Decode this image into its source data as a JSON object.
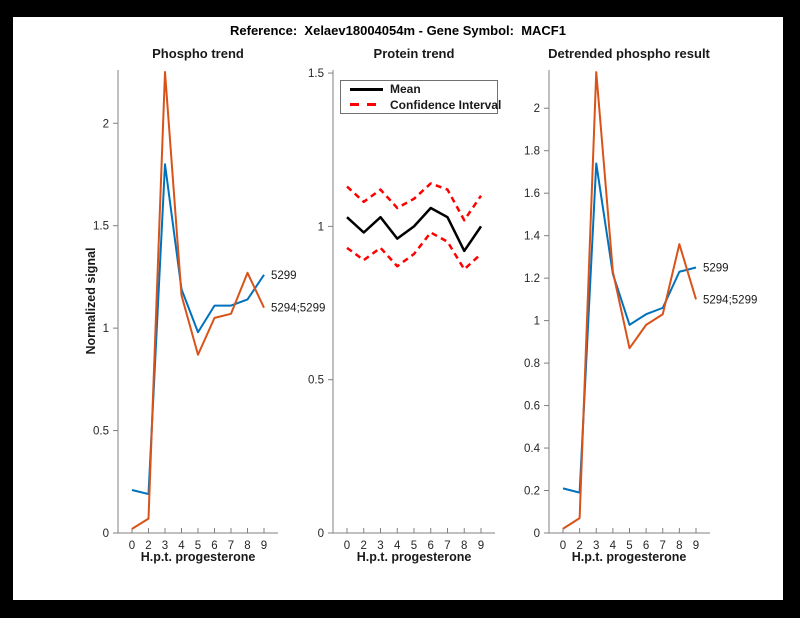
{
  "figure": {
    "title": "Reference:  Xelaev18004054m - Gene Symbol:  MACF1",
    "background_color": "#000000",
    "canvas_color": "#ffffff"
  },
  "palette": {
    "blue": "#0072BD",
    "orange": "#D95319",
    "red": "#FF0000",
    "black": "#000000",
    "axis_line": "#808080",
    "tick_text": "#262626"
  },
  "legend": {
    "entries": [
      "Mean",
      "Confidence Interval"
    ]
  },
  "chart_data": [
    {
      "type": "line",
      "title": "Phospho trend",
      "xlabel": "H.p.t. progesterone",
      "ylabel": "Normalized signal",
      "categories": [
        "0",
        "2",
        "3",
        "4",
        "5",
        "6",
        "7",
        "8",
        "9"
      ],
      "ylim": [
        0,
        2.26
      ],
      "ytick_labels": [
        "0",
        "0.5",
        "1",
        "1.5",
        "2"
      ],
      "grid": false,
      "legend_position": "none",
      "series": [
        {
          "name": "5299",
          "color": "#0072BD",
          "style": "solid",
          "width": 2,
          "end_label": true,
          "values": [
            0.21,
            0.19,
            1.8,
            1.19,
            0.98,
            1.11,
            1.11,
            1.14,
            1.26
          ]
        },
        {
          "name": "5294;5299",
          "color": "#D95319",
          "style": "solid",
          "width": 2,
          "end_label": true,
          "values": [
            0.02,
            0.07,
            2.25,
            1.16,
            0.87,
            1.05,
            1.07,
            1.27,
            1.1
          ]
        }
      ]
    },
    {
      "type": "line",
      "title": "Protein trend",
      "xlabel": "H.p.t. progesterone",
      "ylabel": "",
      "categories": [
        "0",
        "2",
        "3",
        "4",
        "5",
        "6",
        "7",
        "8",
        "9"
      ],
      "ylim": [
        0,
        1.51
      ],
      "ytick_labels": [
        "0",
        "0.5",
        "1",
        "1.5"
      ],
      "grid": false,
      "legend_position": "top-left",
      "series": [
        {
          "name": "Mean",
          "color": "#000000",
          "style": "solid",
          "width": 2.5,
          "end_label": false,
          "values": [
            1.03,
            0.98,
            1.03,
            0.96,
            1.0,
            1.06,
            1.03,
            0.92,
            1.0
          ]
        },
        {
          "name": "Confidence Interval (upper)",
          "color": "#FF0000",
          "style": "dashed",
          "width": 2.5,
          "end_label": false,
          "values": [
            1.13,
            1.08,
            1.12,
            1.06,
            1.09,
            1.14,
            1.12,
            1.02,
            1.1
          ]
        },
        {
          "name": "Confidence Interval (lower)",
          "color": "#FF0000",
          "style": "dashed",
          "width": 2.5,
          "end_label": false,
          "values": [
            0.93,
            0.89,
            0.93,
            0.87,
            0.91,
            0.98,
            0.95,
            0.86,
            0.91
          ]
        }
      ]
    },
    {
      "type": "line",
      "title": "Detrended phospho result",
      "xlabel": "H.p.t. progesterone",
      "ylabel": "",
      "categories": [
        "0",
        "2",
        "3",
        "4",
        "5",
        "6",
        "7",
        "8",
        "9"
      ],
      "ylim": [
        0,
        2.18
      ],
      "ytick_labels": [
        "0",
        "0.2",
        "0.4",
        "0.6",
        "0.8",
        "1",
        "1.2",
        "1.4",
        "1.6",
        "1.8",
        "2"
      ],
      "grid": false,
      "legend_position": "none",
      "series": [
        {
          "name": "5299",
          "color": "#0072BD",
          "style": "solid",
          "width": 2,
          "end_label": true,
          "values": [
            0.21,
            0.19,
            1.74,
            1.22,
            0.98,
            1.03,
            1.06,
            1.23,
            1.25
          ]
        },
        {
          "name": "5294;5299",
          "color": "#D95319",
          "style": "solid",
          "width": 2,
          "end_label": true,
          "values": [
            0.02,
            0.07,
            2.17,
            1.23,
            0.87,
            0.98,
            1.03,
            1.36,
            1.1
          ]
        }
      ]
    }
  ]
}
